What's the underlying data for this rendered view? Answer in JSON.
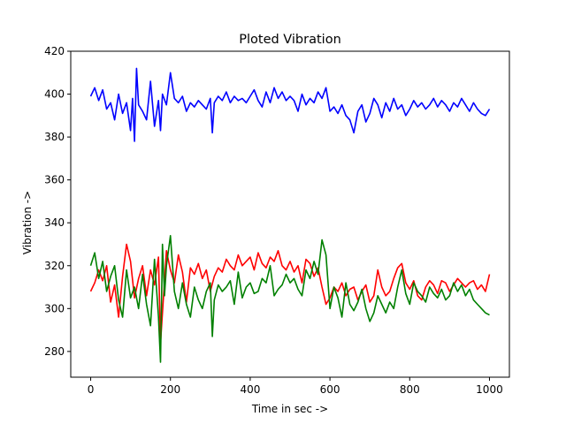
{
  "chart_data": {
    "type": "line",
    "title": "Ploted Vibration",
    "xlabel": "Time in sec ->",
    "ylabel": "Vibration ->",
    "xlim": [
      -50,
      1050
    ],
    "ylim": [
      268,
      420
    ],
    "xticks": [
      0,
      200,
      400,
      600,
      800,
      1000
    ],
    "yticks": [
      280,
      300,
      320,
      340,
      360,
      380,
      400,
      420
    ],
    "grid": false,
    "legend": "none",
    "series": [
      {
        "color": "#0000ff",
        "x": [
          0,
          10,
          20,
          30,
          40,
          50,
          60,
          70,
          80,
          90,
          100,
          105,
          110,
          115,
          120,
          130,
          140,
          150,
          160,
          170,
          175,
          180,
          190,
          200,
          210,
          220,
          230,
          240,
          250,
          260,
          270,
          280,
          290,
          300,
          305,
          310,
          320,
          330,
          340,
          350,
          360,
          370,
          380,
          390,
          400,
          410,
          420,
          430,
          440,
          450,
          460,
          470,
          480,
          490,
          500,
          510,
          520,
          530,
          540,
          550,
          560,
          570,
          580,
          590,
          600,
          610,
          620,
          630,
          640,
          650,
          660,
          670,
          680,
          690,
          700,
          710,
          720,
          730,
          740,
          750,
          760,
          770,
          780,
          790,
          800,
          810,
          820,
          830,
          840,
          850,
          860,
          870,
          880,
          890,
          900,
          910,
          920,
          930,
          940,
          950,
          960,
          970,
          980,
          990,
          1000
        ],
        "y": [
          399,
          403,
          397,
          402,
          393,
          396,
          388,
          400,
          391,
          396,
          383,
          398,
          378,
          412,
          395,
          392,
          388,
          406,
          385,
          397,
          383,
          400,
          395,
          410,
          398,
          396,
          399,
          392,
          396,
          394,
          397,
          395,
          393,
          398,
          382,
          396,
          399,
          397,
          401,
          396,
          399,
          397,
          398,
          396,
          399,
          402,
          397,
          394,
          401,
          396,
          403,
          398,
          401,
          397,
          399,
          397,
          392,
          400,
          395,
          398,
          396,
          401,
          398,
          403,
          392,
          394,
          391,
          395,
          390,
          388,
          382,
          392,
          395,
          387,
          391,
          398,
          395,
          389,
          396,
          392,
          398,
          393,
          395,
          390,
          393,
          397,
          394,
          396,
          393,
          395,
          398,
          394,
          397,
          395,
          392,
          396,
          394,
          398,
          395,
          392,
          396,
          393,
          391,
          390,
          393
        ]
      },
      {
        "color": "#ff0000",
        "x": [
          0,
          10,
          20,
          30,
          40,
          50,
          60,
          70,
          80,
          90,
          100,
          110,
          120,
          130,
          140,
          150,
          160,
          170,
          175,
          180,
          190,
          200,
          210,
          220,
          230,
          240,
          250,
          260,
          270,
          280,
          290,
          300,
          310,
          320,
          330,
          340,
          350,
          360,
          370,
          380,
          390,
          400,
          410,
          420,
          430,
          440,
          450,
          460,
          470,
          480,
          490,
          500,
          510,
          520,
          530,
          540,
          550,
          560,
          570,
          580,
          590,
          600,
          610,
          620,
          630,
          640,
          650,
          660,
          670,
          680,
          690,
          700,
          710,
          720,
          730,
          740,
          750,
          760,
          770,
          780,
          790,
          800,
          810,
          820,
          830,
          840,
          850,
          860,
          870,
          880,
          890,
          900,
          910,
          920,
          930,
          940,
          950,
          960,
          970,
          980,
          990,
          1000
        ],
        "y": [
          308,
          312,
          318,
          313,
          320,
          303,
          311,
          296,
          315,
          330,
          322,
          305,
          314,
          320,
          306,
          318,
          311,
          324,
          284,
          298,
          327,
          318,
          312,
          325,
          317,
          303,
          319,
          316,
          321,
          314,
          318,
          308,
          315,
          319,
          317,
          323,
          320,
          318,
          325,
          320,
          322,
          324,
          318,
          326,
          321,
          319,
          324,
          322,
          327,
          320,
          318,
          322,
          317,
          320,
          312,
          323,
          321,
          315,
          319,
          310,
          302,
          305,
          310,
          308,
          312,
          306,
          309,
          310,
          304,
          308,
          311,
          303,
          306,
          318,
          310,
          306,
          308,
          314,
          319,
          321,
          312,
          309,
          313,
          306,
          304,
          310,
          313,
          311,
          307,
          313,
          312,
          308,
          311,
          314,
          312,
          310,
          312,
          313,
          309,
          311,
          308,
          316
        ]
      },
      {
        "color": "#008000",
        "x": [
          0,
          10,
          20,
          30,
          40,
          50,
          60,
          70,
          80,
          90,
          100,
          110,
          120,
          130,
          140,
          150,
          160,
          170,
          175,
          180,
          185,
          190,
          200,
          210,
          220,
          230,
          240,
          250,
          260,
          270,
          280,
          290,
          300,
          305,
          310,
          320,
          330,
          340,
          350,
          360,
          370,
          380,
          390,
          400,
          410,
          420,
          430,
          440,
          450,
          460,
          470,
          480,
          490,
          500,
          510,
          520,
          530,
          540,
          550,
          560,
          570,
          580,
          590,
          600,
          610,
          620,
          630,
          640,
          650,
          660,
          670,
          680,
          690,
          700,
          710,
          720,
          730,
          740,
          750,
          760,
          770,
          780,
          790,
          800,
          810,
          820,
          830,
          840,
          850,
          860,
          870,
          880,
          890,
          900,
          910,
          920,
          930,
          940,
          950,
          960,
          970,
          980,
          990,
          1000
        ],
        "y": [
          320,
          326,
          314,
          322,
          308,
          315,
          320,
          304,
          296,
          318,
          305,
          310,
          300,
          316,
          302,
          292,
          323,
          296,
          275,
          330,
          306,
          320,
          334,
          308,
          300,
          312,
          302,
          296,
          310,
          304,
          300,
          308,
          312,
          287,
          304,
          311,
          308,
          310,
          313,
          302,
          317,
          305,
          310,
          312,
          307,
          308,
          314,
          312,
          320,
          306,
          309,
          311,
          316,
          312,
          314,
          309,
          306,
          318,
          314,
          322,
          316,
          332,
          325,
          300,
          310,
          305,
          296,
          312,
          302,
          299,
          303,
          309,
          300,
          294,
          298,
          306,
          302,
          298,
          303,
          300,
          310,
          318,
          307,
          302,
          312,
          308,
          306,
          303,
          310,
          307,
          305,
          309,
          304,
          306,
          312,
          308,
          311,
          306,
          309,
          304,
          302,
          300,
          298,
          297
        ]
      }
    ]
  }
}
